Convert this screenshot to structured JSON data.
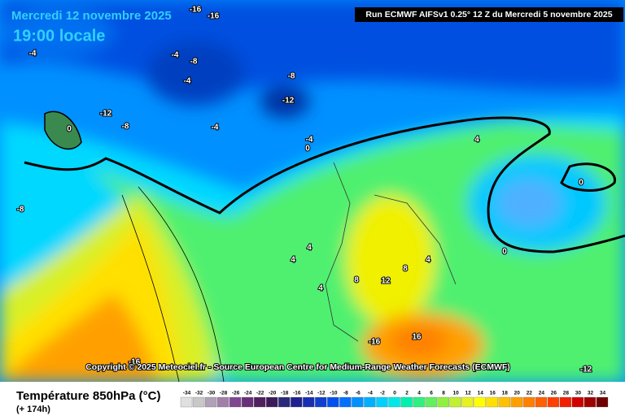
{
  "header": {
    "date": "Mercredi 12 novembre 2025",
    "time": "19:00 locale",
    "run": "Run ECMWF AIFSv1 0.25° 12 Z du Mercredi 5 novembre 2025"
  },
  "copyright": "Copyright © 2025 Meteociel.fr - Source European Centre for Medium-Range Weather Forecasts (ECMWF)",
  "contour_labels": [
    -16,
    -16,
    -4,
    -4,
    -8,
    -4,
    -8,
    -12,
    -8,
    -12,
    -4,
    0,
    -4,
    0,
    4,
    0,
    -8,
    0,
    4,
    4,
    4,
    8,
    12,
    8,
    4,
    16,
    -16,
    -12,
    -16
  ],
  "legend": {
    "title": "Température 850hPa (°C)",
    "subtitle": "(+ 174h)",
    "values": [
      -34,
      -32,
      -30,
      -28,
      -26,
      -24,
      -22,
      -20,
      -18,
      -16,
      -14,
      -12,
      -10,
      -8,
      -6,
      -4,
      -2,
      0,
      2,
      4,
      6,
      8,
      10,
      12,
      14,
      16,
      18,
      20,
      22,
      24,
      26,
      28,
      30,
      32,
      34
    ],
    "colors": [
      "#e0e0e0",
      "#c8c8c8",
      "#b0a0b8",
      "#a080a8",
      "#804890",
      "#683078",
      "#502060",
      "#3c1a5a",
      "#2a2a7a",
      "#202090",
      "#1830b0",
      "#1040d0",
      "#0050f0",
      "#0070ff",
      "#0090ff",
      "#00b0ff",
      "#00d0ff",
      "#00e8e8",
      "#00f0b0",
      "#30f080",
      "#60f060",
      "#90f040",
      "#c0f030",
      "#e8f020",
      "#ffff00",
      "#ffe000",
      "#ffc000",
      "#ffa000",
      "#ff8000",
      "#ff6000",
      "#ff4000",
      "#f02000",
      "#d00000",
      "#a00000",
      "#700000"
    ]
  }
}
